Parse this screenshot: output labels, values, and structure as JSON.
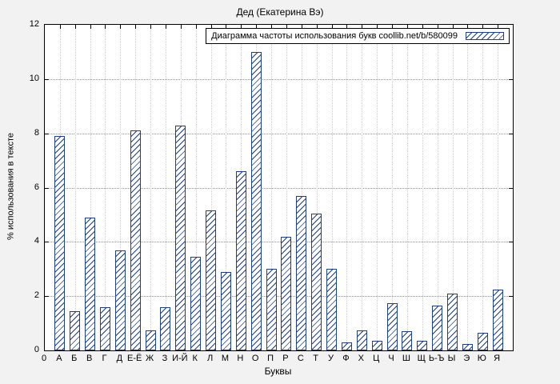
{
  "chart_data": {
    "type": "bar",
    "title": "Дед (Екатерина Вэ)",
    "legend": "Диаграмма частоты использования букв coollib.net/b/580099",
    "xlabel": "Буквы",
    "ylabel": "% использования в тексте",
    "x_origin_label": "0",
    "ylim": [
      0,
      12
    ],
    "yticks": [
      0,
      2,
      4,
      6,
      8,
      10,
      12
    ],
    "grid": true,
    "legend_position": "top-right",
    "categories": [
      "А",
      "Б",
      "В",
      "Г",
      "Д",
      "Е-Ё",
      "Ж",
      "З",
      "И-Й",
      "К",
      "Л",
      "М",
      "Н",
      "О",
      "П",
      "Р",
      "С",
      "Т",
      "У",
      "Ф",
      "Х",
      "Ц",
      "Ч",
      "Ш",
      "Щ",
      "Ь-Ъ",
      "Ы",
      "Э",
      "Ю",
      "Я"
    ],
    "values": [
      7.9,
      1.45,
      4.9,
      1.6,
      3.7,
      8.1,
      0.75,
      1.6,
      8.3,
      3.45,
      5.15,
      2.9,
      6.6,
      11.0,
      3.0,
      4.2,
      5.7,
      5.05,
      3.0,
      0.3,
      0.75,
      0.35,
      1.75,
      0.7,
      0.35,
      1.65,
      2.1,
      0.25,
      0.65,
      2.25
    ],
    "colors": {
      "bar": "#1c3f94",
      "background": "#f2f2f2",
      "plot_background": "#ffffff",
      "grid": "#8f8f8f"
    }
  }
}
